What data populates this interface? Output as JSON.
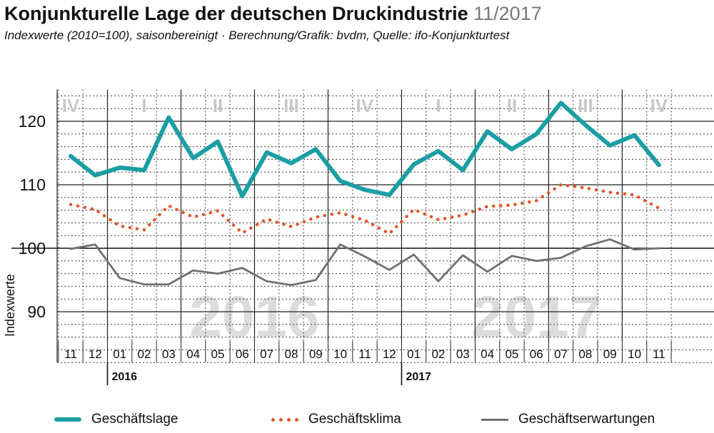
{
  "chart_data": {
    "type": "line",
    "title": "Konjunkturelle Lage der deutschen Druckindustrie",
    "title_date": "11/2017",
    "subtitle": "Indexwerte (2010=100), saisonbereinigt · Berechnung/Grafik: bvdm, Quelle: ifo-Konjunkturtest",
    "ylabel": "Indexwerte",
    "ylim": [
      80,
      125
    ],
    "yticks": [
      "90",
      "100",
      "110",
      "120"
    ],
    "x": [
      "11",
      "12",
      "01",
      "02",
      "03",
      "04",
      "05",
      "06",
      "07",
      "08",
      "09",
      "10",
      "11",
      "12",
      "01",
      "02",
      "03",
      "04",
      "05",
      "06",
      "07",
      "08",
      "09",
      "10",
      "11"
    ],
    "year_labels": [
      {
        "label": "2016",
        "start_index": 2
      },
      {
        "label": "2017",
        "start_index": 14
      }
    ],
    "watermarks": [
      {
        "text": "2016",
        "center_index": 7.5
      },
      {
        "text": "2017",
        "center_index": 19
      }
    ],
    "quarters": [
      {
        "label": "IV",
        "center_index": 0
      },
      {
        "label": "I",
        "center_index": 3
      },
      {
        "label": "II",
        "center_index": 6
      },
      {
        "label": "III",
        "center_index": 9
      },
      {
        "label": "IV",
        "center_index": 12
      },
      {
        "label": "I",
        "center_index": 15
      },
      {
        "label": "II",
        "center_index": 18
      },
      {
        "label": "III",
        "center_index": 21
      },
      {
        "label": "IV",
        "center_index": 24
      }
    ],
    "reference_line": 100,
    "grid": true,
    "legend_position": "bottom",
    "series": [
      {
        "name": "Geschäftslage",
        "color": "#1a9ea3",
        "style": "solid",
        "values": [
          114.5,
          111.5,
          112.7,
          112.3,
          120.6,
          114.2,
          116.8,
          108.2,
          115.1,
          113.4,
          115.6,
          110.6,
          109.2,
          108.4,
          113.2,
          115.3,
          112.3,
          118.4,
          115.6,
          118.0,
          122.9,
          119.4,
          116.2,
          117.8,
          113.1
        ]
      },
      {
        "name": "Geschäftsklima",
        "color": "#e0562a",
        "style": "dotted",
        "values": [
          106.9,
          106.1,
          103.5,
          102.9,
          106.7,
          104.9,
          105.9,
          102.4,
          104.6,
          103.4,
          104.9,
          105.6,
          104.4,
          102.3,
          106.1,
          104.5,
          105.2,
          106.6,
          106.8,
          107.5,
          110.0,
          109.5,
          108.8,
          108.4,
          106.3
        ]
      },
      {
        "name": "Geschäftserwartungen",
        "color": "#707070",
        "style": "solid",
        "values": [
          99.9,
          100.6,
          95.3,
          94.3,
          94.3,
          96.5,
          96.0,
          96.9,
          94.8,
          94.2,
          95.0,
          100.6,
          98.7,
          96.6,
          99.0,
          94.8,
          98.9,
          96.3,
          98.8,
          98.0,
          98.5,
          100.3,
          101.4,
          99.8,
          100.0
        ]
      }
    ]
  }
}
